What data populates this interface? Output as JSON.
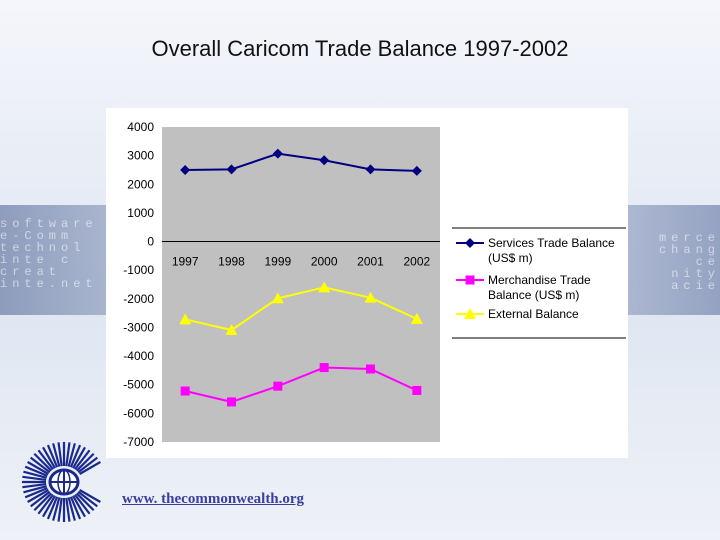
{
  "slide": {
    "title": "Overall Caricom Trade Balance 1997-2002",
    "footer_link": "www. thecommonwealth.org",
    "background_words_left": [
      "software",
      "e-Comm",
      "technol",
      "inte c",
      "creat",
      "inte.net"
    ],
    "background_words_right": [
      "merce",
      "chang",
      "ce",
      "nity",
      "acie"
    ]
  },
  "colors": {
    "plot_background": "#c0c0c0",
    "services": "#000080",
    "merchandise": "#ff00ff",
    "external": "#ffff00"
  },
  "chart_data": {
    "type": "line",
    "title": "",
    "xlabel": "",
    "ylabel": "",
    "categories": [
      "1997",
      "1998",
      "1999",
      "2000",
      "2001",
      "2002"
    ],
    "ylim": [
      -7000,
      4000
    ],
    "yticks": [
      "4000",
      "3000",
      "2000",
      "1000",
      "0",
      "-1000",
      "-2000",
      "-3000",
      "-4000",
      "-5000",
      "-6000",
      "-7000"
    ],
    "grid": false,
    "legend_position": "right",
    "series": [
      {
        "name": "Services Trade Balance (US$ m)",
        "legend_lines": [
          "Services Trade Balance",
          "(US$ m)"
        ],
        "marker": "diamond",
        "color": "#000080",
        "values": [
          2500,
          2520,
          3070,
          2840,
          2520,
          2470
        ]
      },
      {
        "name": "Merchandise Trade Balance (US$ m)",
        "legend_lines": [
          "Merchandise Trade",
          "Balance (US$ m)"
        ],
        "marker": "square",
        "color": "#ff00ff",
        "values": [
          -5220,
          -5600,
          -5050,
          -4400,
          -4450,
          -5200
        ]
      },
      {
        "name": "External Balance",
        "legend_lines": [
          "External Balance"
        ],
        "marker": "triangle",
        "color": "#ffff00",
        "values": [
          -2720,
          -3090,
          -1980,
          -1600,
          -1960,
          -2700
        ]
      }
    ]
  }
}
